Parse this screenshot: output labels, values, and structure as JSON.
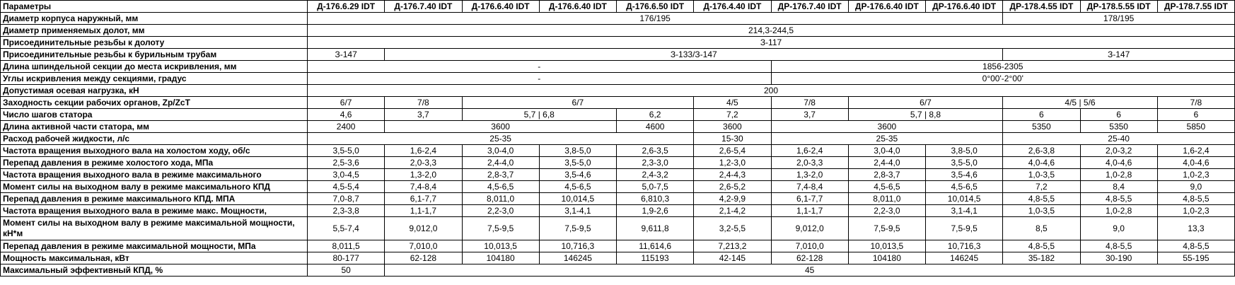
{
  "table": {
    "header": [
      "Параметры",
      "Д-176.6.29 IDT",
      "Д-176.7.40 IDT",
      "Д-176.6.40 IDT",
      "Д-176.6.40 IDT",
      "Д-176.6.50 IDT",
      "Д-176.4.40 IDT",
      "ДР-176.7.40 IDT",
      "ДР-176.6.40 IDT",
      "ДР-176.6.40 IDT",
      "ДР-178.4.55 IDT",
      "ДР-178.5.55 IDT",
      "ДР-178.7.55 IDT"
    ],
    "rows": [
      [
        "Диаметр корпуса наружный, мм",
        "176/195",
        "178/195"
      ],
      [
        "Диаметр применяемых долот, мм",
        "214,3-244,5"
      ],
      [
        "Присоединительные резьбы к долоту",
        "З-117"
      ],
      [
        "Присоединительные резьбы к бурильным трубам",
        "З-147",
        "З-133/З-147",
        "З-147"
      ],
      [
        "Длина шпиндельной секции до места искривления, мм",
        "-",
        "1856-2305"
      ],
      [
        "Углы искривления между секциями, градус",
        "-",
        "0°00'-2°00'"
      ],
      [
        "Допустимая осевая нагрузка, кН",
        "200"
      ],
      [
        "Заходность секции рабочих органов, Zp/ZcT",
        "6/7",
        "7/8",
        "6/7",
        "4/5",
        "7/8",
        "6/7",
        "4/5 | 5/6",
        "7/8"
      ],
      [
        "Число шагов статора",
        "4,6",
        "3,7",
        "5,7 | 6,8",
        "6,2",
        "7,2",
        "3,7",
        "5,7 | 8,8",
        "6",
        "6",
        "6"
      ],
      [
        "Длина активной части статора, мм",
        "2400",
        "3600",
        "4600",
        "3600",
        "3600",
        "5350",
        "5350",
        "5850"
      ],
      [
        "Расход рабочей жидкости, л/с",
        "25-35",
        "15-30",
        "25-35",
        "25-40"
      ],
      [
        "Частота вращения выходного вала на холостом ходу, об/с",
        "3,5-5,0",
        "1,6-2,4",
        "3,0-4,0",
        "3,8-5,0",
        "2,6-3,5",
        "2,6-5,4",
        "1,6-2,4",
        "3,0-4,0",
        "3,8-5,0",
        "2,6-3,8",
        "2,0-3,2",
        "1,6-2,4"
      ],
      [
        "Перепад давления в режиме холостого хода, МПа",
        "2,5-3,6",
        "2,0-3,3",
        "2,4-4,0",
        "3,5-5,0",
        "2,3-3,0",
        "1,2-3,0",
        "2,0-3,3",
        "2,4-4,0",
        "3,5-5,0",
        "4,0-4,6",
        "4,0-4,6",
        "4,0-4,6"
      ],
      [
        "Частота вращения выходного вала в режиме максимального",
        "3,0-4,5",
        "1,3-2,0",
        "2,8-3,7",
        "3,5-4,6",
        "2,4-3,2",
        "2,4-4,3",
        "1,3-2,0",
        "2,8-3,7",
        "3,5-4,6",
        "1,0-3,5",
        "1,0-2,8",
        "1,0-2,3"
      ],
      [
        "Момент силы на выходном валу в режиме максимального КПД",
        "4,5-5,4",
        "7,4-8,4",
        "4,5-6,5",
        "4,5-6,5",
        "5,0-7,5",
        "2,6-5,2",
        "7,4-8,4",
        "4,5-6,5",
        "4,5-6,5",
        "7,2",
        "8,4",
        "9,0"
      ],
      [
        "Перепад давления в режиме максимального КПД. МПА",
        "7,0-8,7",
        "6,1-7,7",
        "8,011,0",
        "10,014,5",
        "6,810,3",
        "4,2-9,9",
        "6,1-7,7",
        "8,011,0",
        "10,014,5",
        "4,8-5,5",
        "4,8-5,5",
        "4,8-5,5"
      ],
      [
        "Частота вращения выходного вала в режиме макс. Мощности,",
        "2,3-3,8",
        "1,1-1,7",
        "2,2-3,0",
        "3,1-4,1",
        "1,9-2,6",
        "2,1-4,2",
        "1,1-1,7",
        "2,2-3,0",
        "3,1-4,1",
        "1,0-3,5",
        "1,0-2,8",
        "1,0-2,3"
      ],
      [
        "Момент силы на выходном валу в режиме максимальной мощности, кН*м",
        "5,5-7,4",
        "9,012,0",
        "7,5-9,5",
        "7,5-9,5",
        "9,611,8",
        "3,2-5,5",
        "9,012,0",
        "7,5-9,5",
        "7,5-9,5",
        "8,5",
        "9,0",
        "13,3"
      ],
      [
        "Перепад давления в режиме максимальной мощности, МПа",
        "8,011,5",
        "7,010,0",
        "10,013,5",
        "10,716,3",
        "11,614,6",
        "7,213,2",
        "7,010,0",
        "10,013,5",
        "10,716,3",
        "4,8-5,5",
        "4,8-5,5",
        "4,8-5,5"
      ],
      [
        "Мощность максимальная, кВт",
        "80-177",
        "62-128",
        "104180",
        "146245",
        "115193",
        "42-145",
        "62-128",
        "104180",
        "146245",
        "35-182",
        "30-190",
        "55-195"
      ],
      [
        "Максимальный эффективный КПД, %",
        "50",
        "45"
      ]
    ]
  }
}
